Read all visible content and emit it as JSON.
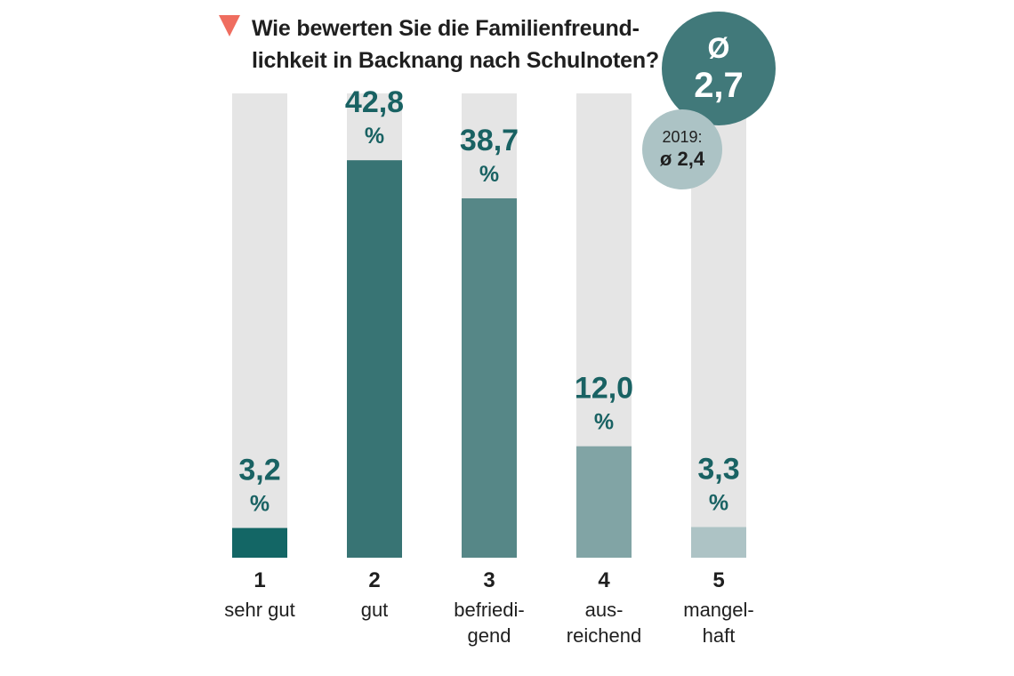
{
  "title": {
    "line1": "Wie bewerten Sie die Familienfreund-",
    "line2": "lichkeit in Backnang nach Schulnoten?"
  },
  "average": {
    "symbol": "Ø",
    "value": "2,7"
  },
  "previous": {
    "label": "2019:",
    "value": "ø 2,4"
  },
  "colors": {
    "accent": "#ef6d5f",
    "track": "#e5e5e5",
    "text": "#1f1f1f",
    "value_text": "#196263",
    "avg_circle": "#41797a",
    "prev_circle": "#acc3c5"
  },
  "chart_data": {
    "type": "bar",
    "title": "Wie bewerten Sie die Familienfreundlichkeit in Backnang nach Schulnoten?",
    "categories": [
      "1",
      "2",
      "3",
      "4",
      "5"
    ],
    "category_labels": [
      [
        "sehr gut"
      ],
      [
        "gut"
      ],
      [
        "befriedi-",
        "gend"
      ],
      [
        "aus-",
        "reichend"
      ],
      [
        "mangel-",
        "haft"
      ]
    ],
    "values": [
      3.2,
      42.8,
      38.7,
      12.0,
      3.3
    ],
    "value_labels": [
      "3,2",
      "42,8",
      "38,7",
      "12,0",
      "3,3"
    ],
    "unit": "%",
    "bar_colors": [
      "#136665",
      "#387474",
      "#568787",
      "#81a4a5",
      "#adc3c5"
    ],
    "ylim": [
      0,
      50
    ]
  }
}
